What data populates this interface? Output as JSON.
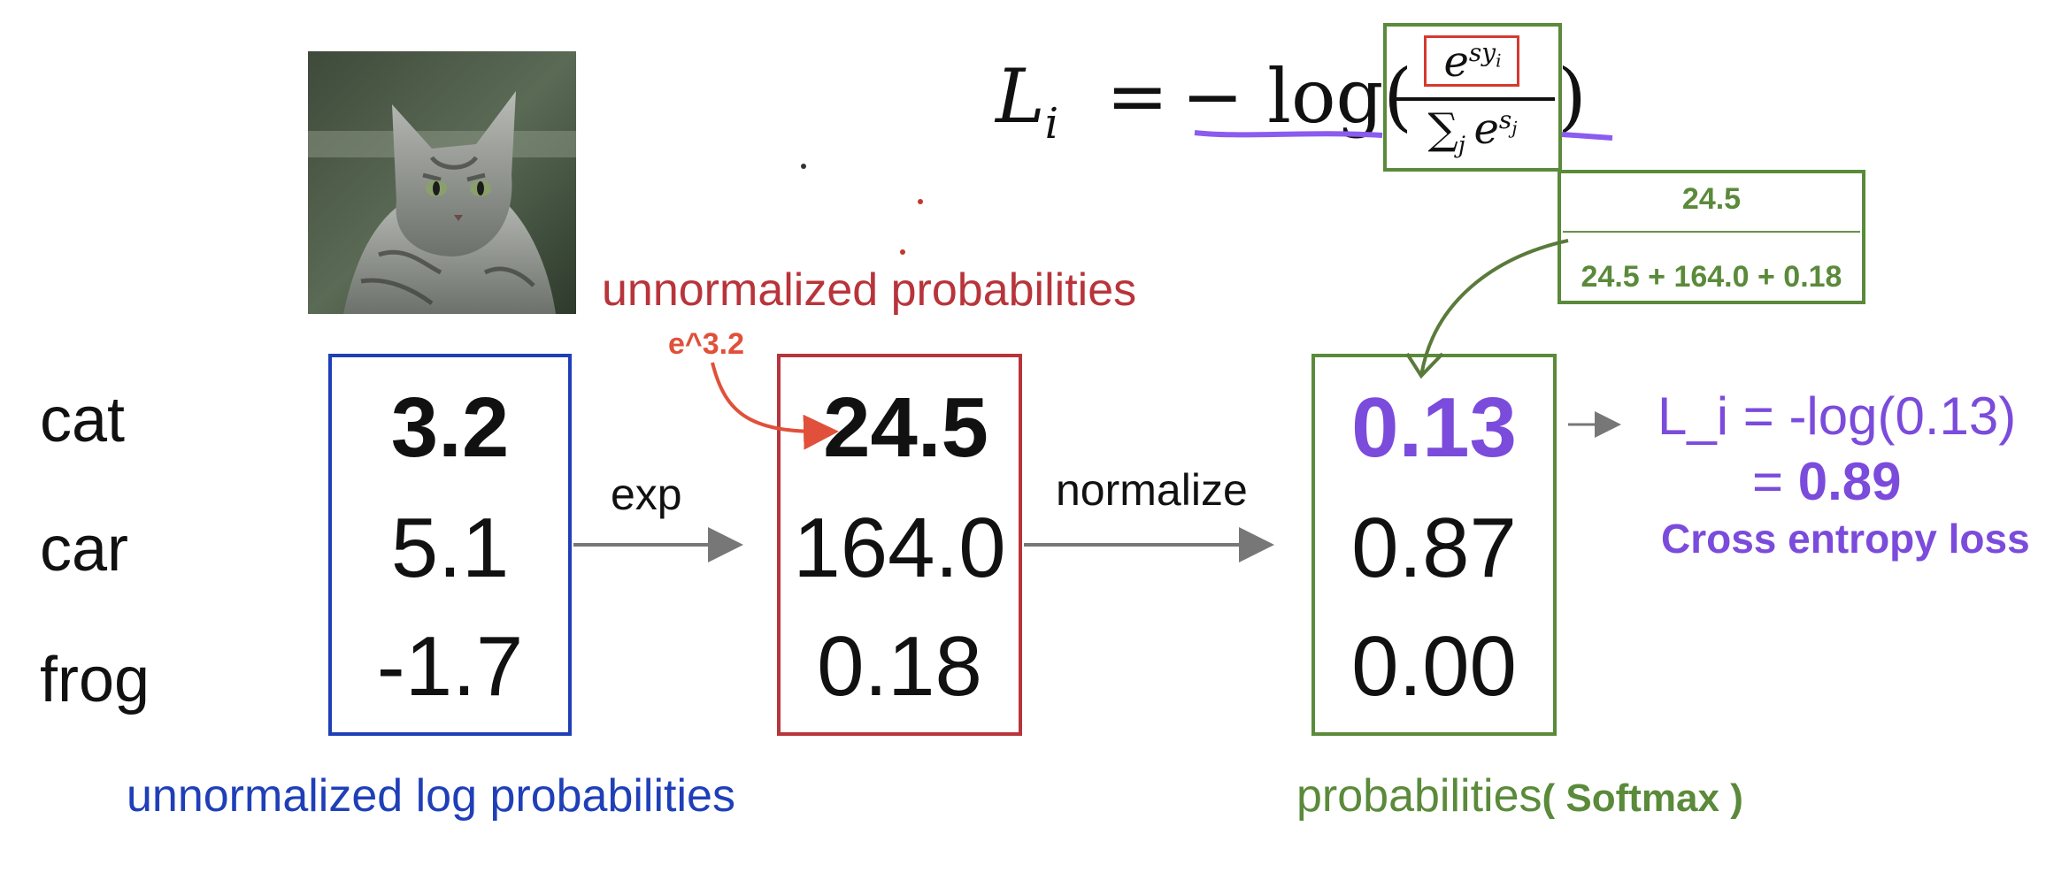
{
  "classes": [
    "cat",
    "car",
    "frog"
  ],
  "scores": {
    "values": [
      "3.2",
      "5.1",
      "-1.7"
    ],
    "label": "unnormalized log probabilities"
  },
  "exp_values": {
    "values": [
      "24.5",
      "164.0",
      "0.18"
    ],
    "label": "unnormalized probabilities"
  },
  "probs": {
    "values": [
      "0.13",
      "0.87",
      "0.00"
    ],
    "label": "probabilities",
    "label_suffix": "( Softmax )"
  },
  "arrows": {
    "exp": "exp",
    "normalize": "normalize"
  },
  "annotations": {
    "exp_note": "e^3.2"
  },
  "fraction": {
    "numerator": "24.5",
    "divider": "————————————",
    "denominator": "24.5 + 164.0 + 0.18"
  },
  "formula": {
    "lhs": "L",
    "lhs_sub": "i",
    "eq": "=",
    "minus_log": "− log(",
    "close": ")",
    "num_base": "e",
    "num_exp": "sy",
    "num_exp_sub": "i",
    "den_sum": "∑",
    "den_sum_sub": "j",
    "den_base": "e",
    "den_exp": "s",
    "den_exp_sub": "j"
  },
  "loss": {
    "line1": "L_i = -log(0.13)",
    "line2_prefix": "= ",
    "line2_value": "0.89",
    "caption": "Cross entropy loss"
  },
  "colors": {
    "blue": "#1f3fb8",
    "red": "#b8343b",
    "green": "#5a8a3a",
    "purple": "#7b4bdc",
    "orange": "#e0503a"
  },
  "image": {
    "subject": "tabby-cat-photo"
  }
}
